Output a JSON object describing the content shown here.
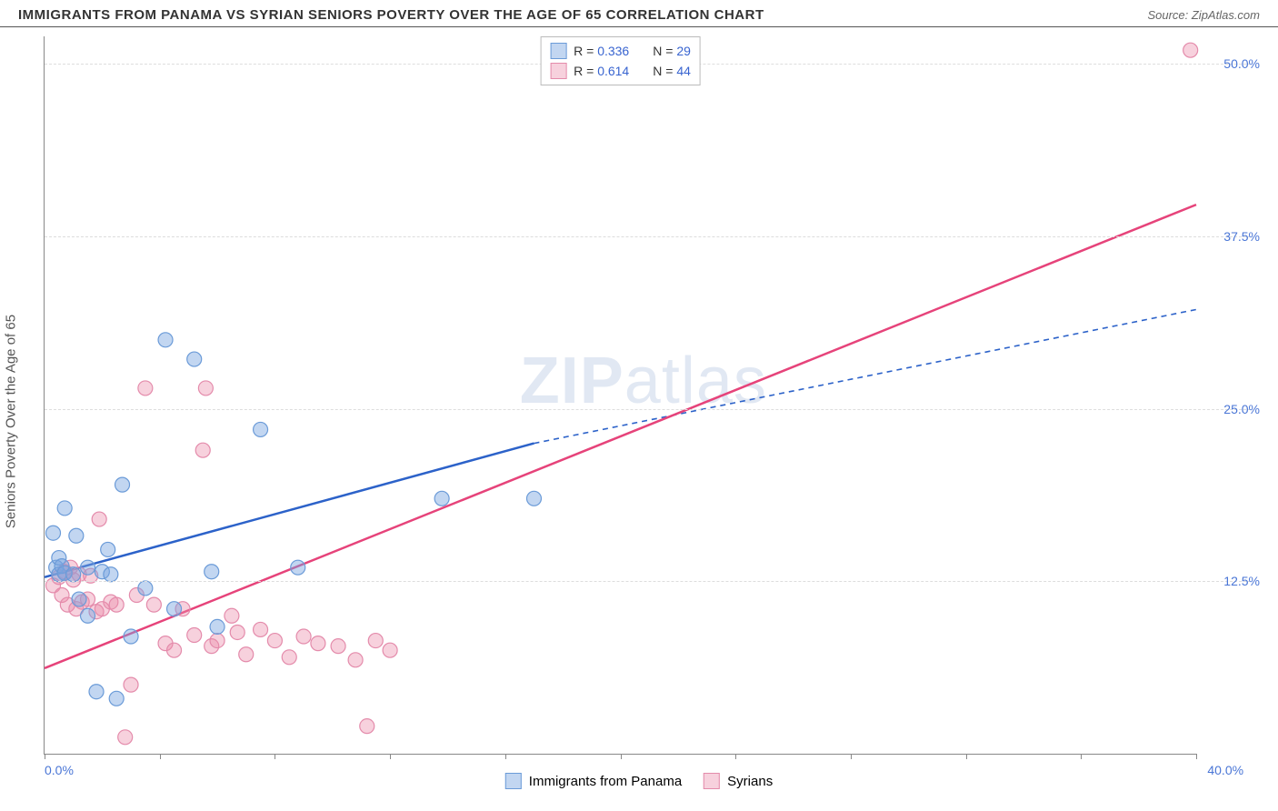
{
  "header": {
    "title": "IMMIGRANTS FROM PANAMA VS SYRIAN SENIORS POVERTY OVER THE AGE OF 65 CORRELATION CHART",
    "source_prefix": "Source: ",
    "source": "ZipAtlas.com"
  },
  "chart": {
    "type": "scatter",
    "ylabel": "Seniors Poverty Over the Age of 65",
    "xlim": [
      0,
      40
    ],
    "ylim": [
      0,
      52
    ],
    "xtick_major": [
      0,
      20,
      40
    ],
    "xtick_minor": [
      4,
      8,
      12,
      16,
      24,
      28,
      32,
      36
    ],
    "xtick_labels": {
      "0": "0.0%",
      "40": "40.0%"
    },
    "ytick_values": [
      12.5,
      25.0,
      37.5,
      50.0
    ],
    "ytick_labels": [
      "12.5%",
      "25.0%",
      "37.5%",
      "50.0%"
    ],
    "grid_color": "#dddddd",
    "axis_color": "#888888",
    "background_color": "#ffffff",
    "tick_label_color": "#4a76d6",
    "label_fontsize": 15,
    "tick_fontsize": 14,
    "watermark": "ZIPatlas",
    "series": [
      {
        "key": "panama",
        "label": "Immigrants from Panama",
        "color_fill": "rgba(120,165,225,0.45)",
        "color_stroke": "#6b9bd8",
        "line_color": "#2c62c9",
        "marker_radius": 8,
        "r_label": "R =",
        "r_value": "0.336",
        "n_label": "N =",
        "n_value": "29",
        "trend": {
          "x1": 0,
          "y1": 12.8,
          "x2": 17,
          "y2": 22.5,
          "dash_x1": 17,
          "dash_y1": 22.5,
          "dash_x2": 40,
          "dash_y2": 32.2
        },
        "points": [
          [
            0.3,
            16.0
          ],
          [
            0.4,
            13.5
          ],
          [
            0.5,
            13.0
          ],
          [
            0.5,
            14.2
          ],
          [
            0.6,
            13.6
          ],
          [
            0.7,
            13.1
          ],
          [
            0.7,
            17.8
          ],
          [
            1.0,
            13.0
          ],
          [
            1.1,
            15.8
          ],
          [
            1.2,
            11.2
          ],
          [
            1.5,
            10.0
          ],
          [
            1.5,
            13.5
          ],
          [
            1.8,
            4.5
          ],
          [
            2.0,
            13.2
          ],
          [
            2.2,
            14.8
          ],
          [
            2.3,
            13.0
          ],
          [
            2.5,
            4.0
          ],
          [
            2.7,
            19.5
          ],
          [
            3.0,
            8.5
          ],
          [
            3.5,
            12.0
          ],
          [
            4.2,
            30.0
          ],
          [
            4.5,
            10.5
          ],
          [
            5.2,
            28.6
          ],
          [
            5.8,
            13.2
          ],
          [
            6.0,
            9.2
          ],
          [
            7.5,
            23.5
          ],
          [
            8.8,
            13.5
          ],
          [
            13.8,
            18.5
          ],
          [
            17.0,
            18.5
          ]
        ]
      },
      {
        "key": "syrians",
        "label": "Syrians",
        "color_fill": "rgba(235,140,170,0.4)",
        "color_stroke": "#e48bab",
        "line_color": "#e6437a",
        "marker_radius": 8,
        "r_label": "R =",
        "r_value": "0.614",
        "n_label": "N =",
        "n_value": "44",
        "trend": {
          "x1": 0,
          "y1": 6.2,
          "x2": 40,
          "y2": 39.8
        },
        "points": [
          [
            0.3,
            12.2
          ],
          [
            0.5,
            12.8
          ],
          [
            0.6,
            11.5
          ],
          [
            0.7,
            13.2
          ],
          [
            0.8,
            10.8
          ],
          [
            0.9,
            13.5
          ],
          [
            1.0,
            12.6
          ],
          [
            1.1,
            10.5
          ],
          [
            1.2,
            13.0
          ],
          [
            1.3,
            11.0
          ],
          [
            1.5,
            11.2
          ],
          [
            1.6,
            12.9
          ],
          [
            1.8,
            10.3
          ],
          [
            1.9,
            17.0
          ],
          [
            2.0,
            10.5
          ],
          [
            2.3,
            11.0
          ],
          [
            2.5,
            10.8
          ],
          [
            2.8,
            1.2
          ],
          [
            3.0,
            5.0
          ],
          [
            3.2,
            11.5
          ],
          [
            3.5,
            26.5
          ],
          [
            3.8,
            10.8
          ],
          [
            4.2,
            8.0
          ],
          [
            4.5,
            7.5
          ],
          [
            4.8,
            10.5
          ],
          [
            5.2,
            8.6
          ],
          [
            5.5,
            22.0
          ],
          [
            5.6,
            26.5
          ],
          [
            5.8,
            7.8
          ],
          [
            6.0,
            8.2
          ],
          [
            6.5,
            10.0
          ],
          [
            6.7,
            8.8
          ],
          [
            7.0,
            7.2
          ],
          [
            7.5,
            9.0
          ],
          [
            8.0,
            8.2
          ],
          [
            8.5,
            7.0
          ],
          [
            9.0,
            8.5
          ],
          [
            9.5,
            8.0
          ],
          [
            10.2,
            7.8
          ],
          [
            10.8,
            6.8
          ],
          [
            11.2,
            2.0
          ],
          [
            11.5,
            8.2
          ],
          [
            12.0,
            7.5
          ],
          [
            39.8,
            51.0
          ]
        ]
      }
    ]
  }
}
